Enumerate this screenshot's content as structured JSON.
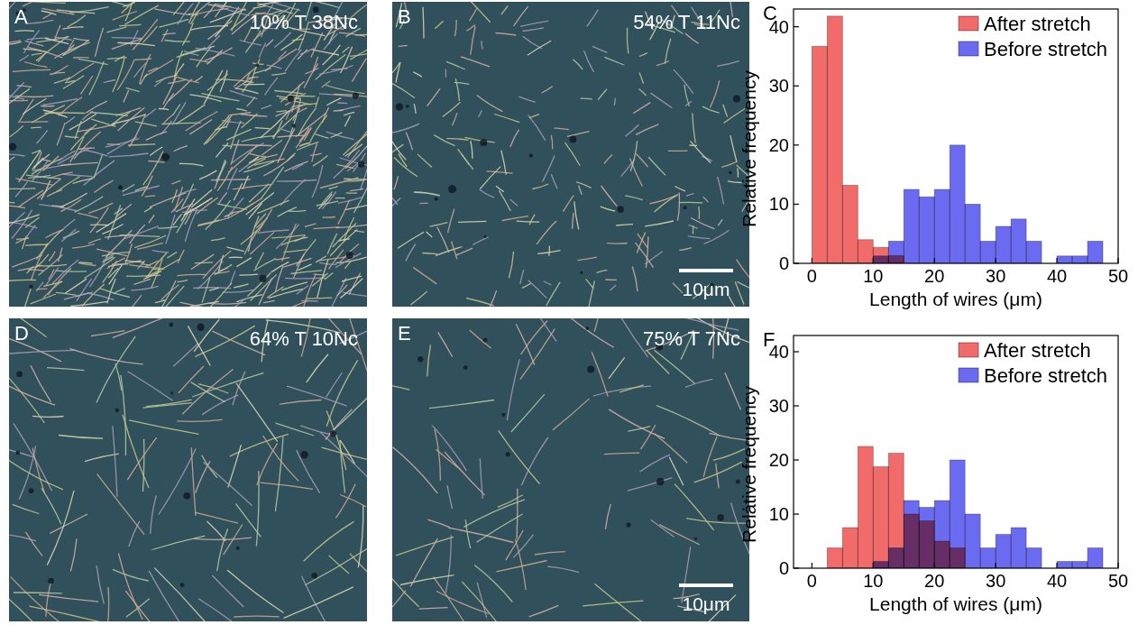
{
  "images": [
    {
      "panel_label": "A",
      "caption": "10% T 38Nc"
    },
    {
      "panel_label": "B",
      "caption": "54% T 11Nc",
      "scale_bar": "10μm"
    },
    {
      "panel_label": "D",
      "caption": "64% T 10Nc"
    },
    {
      "panel_label": "E",
      "caption": "75% T 7Nc",
      "scale_bar": "10μm"
    }
  ],
  "chart_data": [
    {
      "type": "histogram",
      "panel_label": "C",
      "xlabel": "Length of wires (μm)",
      "ylabel": "Relative frequency",
      "bins": [
        0,
        2.5,
        5,
        7.5,
        10,
        12.5,
        15,
        17.5,
        20,
        22.5,
        25,
        27.5,
        30,
        32.5,
        35,
        37.5,
        40,
        42.5,
        45,
        47.5,
        50
      ],
      "series": [
        {
          "name": "After stretch",
          "color": "#f26b6b",
          "values": [
            36.7,
            41.8,
            13.2,
            4,
            2.7,
            1.3,
            0,
            0,
            0,
            0,
            0,
            0,
            0,
            0,
            0,
            0,
            0,
            0,
            0,
            0
          ]
        },
        {
          "name": "Before stretch",
          "color": "#6b6bf2",
          "values": [
            0,
            0,
            0,
            0,
            1.25,
            3.75,
            12.5,
            11.25,
            12.5,
            20,
            10,
            3.75,
            6.25,
            7.5,
            3.75,
            0,
            1.25,
            1.25,
            3.75,
            0
          ]
        }
      ],
      "xlim": [
        -3,
        50
      ],
      "xticks": [
        0,
        10,
        20,
        30,
        40,
        50
      ],
      "ylim": [
        0,
        43
      ],
      "yticks": [
        0,
        10,
        20,
        30,
        40
      ],
      "legend": "upper right"
    },
    {
      "type": "histogram",
      "panel_label": "F",
      "xlabel": "Length of wires (μm)",
      "ylabel": "Relative frequency",
      "bins": [
        0,
        2.5,
        5,
        7.5,
        10,
        12.5,
        15,
        17.5,
        20,
        22.5,
        25,
        27.5,
        30,
        32.5,
        35,
        37.5,
        40,
        42.5,
        45,
        47.5,
        50
      ],
      "series": [
        {
          "name": "After stretch",
          "color": "#f26b6b",
          "values": [
            0,
            3.75,
            7.5,
            22.5,
            18.75,
            21.25,
            10,
            8.75,
            5,
            3.75,
            0,
            0,
            0,
            0,
            0,
            0,
            0,
            0,
            0,
            0
          ]
        },
        {
          "name": "Before stretch",
          "color": "#6b6bf2",
          "values": [
            0,
            0,
            0,
            0,
            1.25,
            3.75,
            12.5,
            11.25,
            12.5,
            20,
            10,
            3.75,
            6.25,
            7.5,
            3.75,
            0,
            1.25,
            1.25,
            3.75,
            0
          ]
        }
      ],
      "xlim": [
        -3,
        50
      ],
      "xticks": [
        0,
        10,
        20,
        30,
        40,
        50
      ],
      "ylim": [
        0,
        43
      ],
      "yticks": [
        0,
        10,
        20,
        30,
        40
      ],
      "legend": "upper right"
    }
  ]
}
